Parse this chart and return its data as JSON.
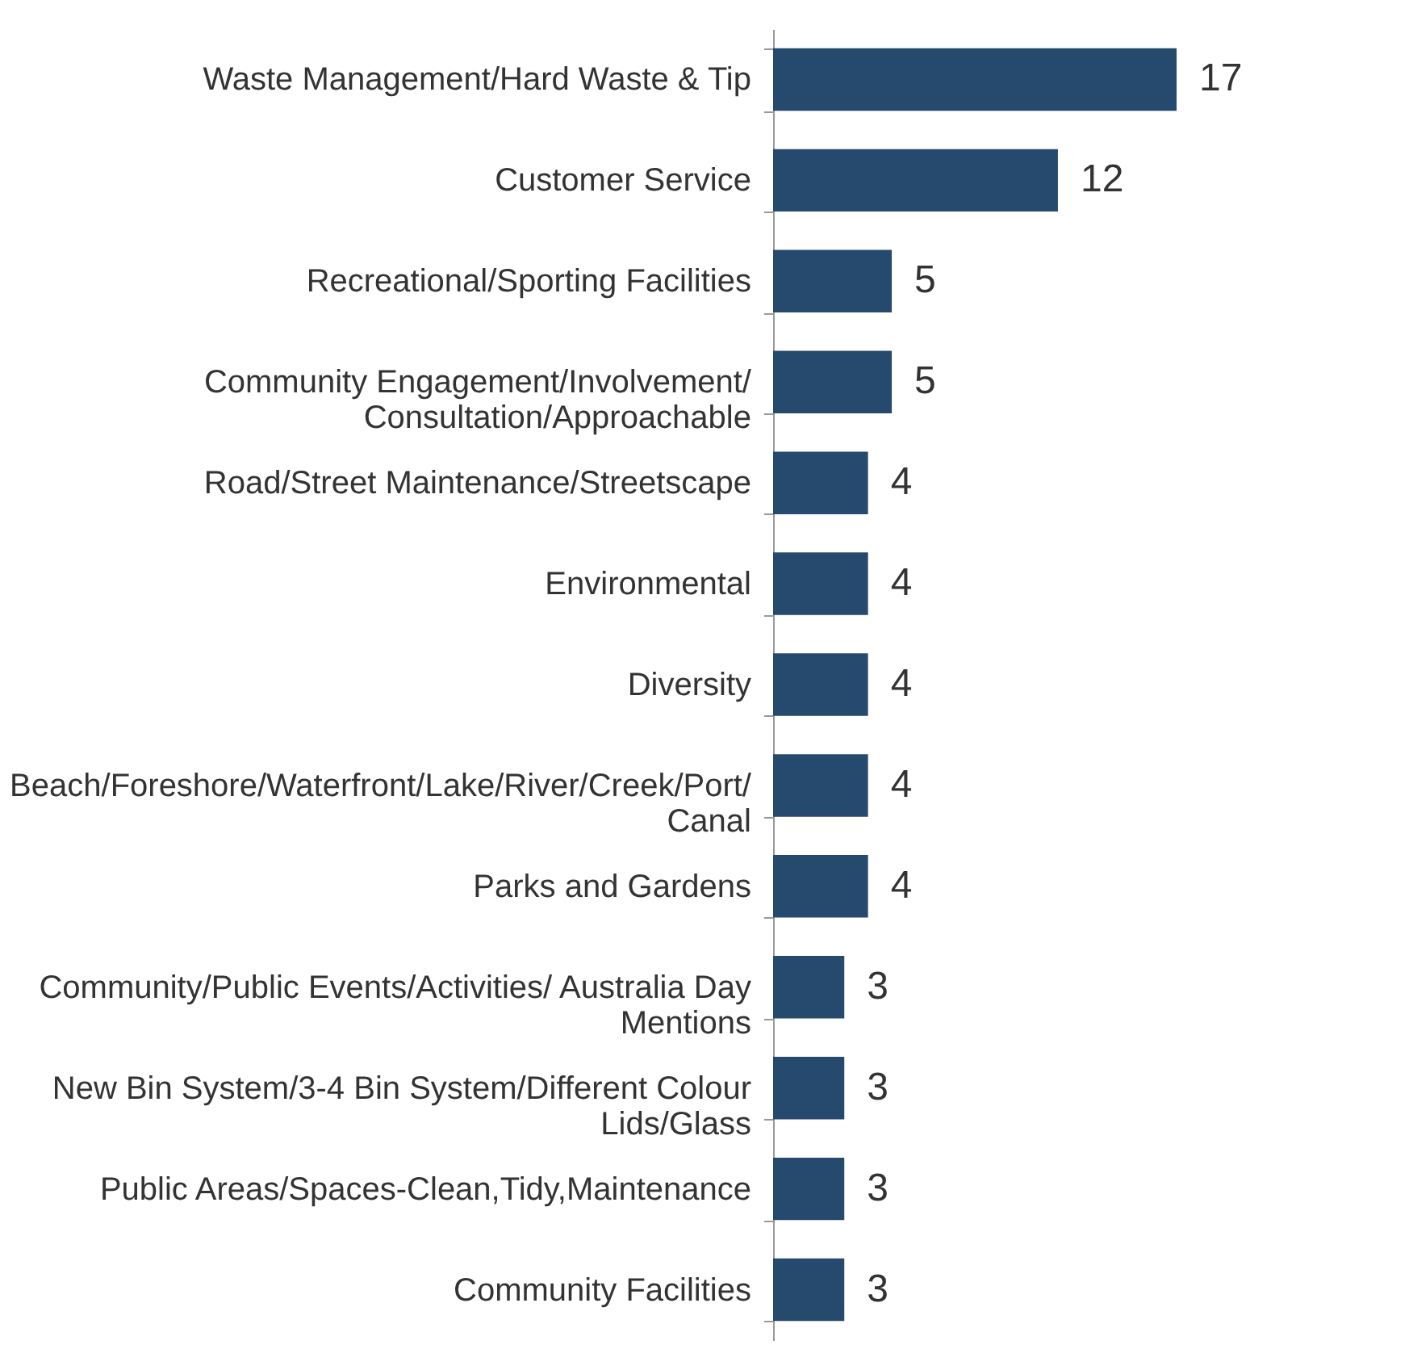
{
  "chart_data": {
    "type": "bar",
    "orientation": "horizontal",
    "data_labels": true,
    "categories": [
      "Waste Management/Hard Waste & Tip",
      "Customer Service",
      "Recreational/Sporting Facilities",
      "Community Engagement/Involvement/\nConsultation/Approachable",
      "Road/Street Maintenance/Streetscape",
      "Environmental",
      "Diversity",
      "Beach/Foreshore/Waterfront/Lake/River/Creek/Port/\nCanal",
      "Parks and Gardens",
      "Community/Public Events/Activities/ Australia Day\nMentions",
      "New Bin System/3-4 Bin System/Different Colour\nLids/Glass",
      "Public Areas/Spaces-Clean,Tidy,Maintenance",
      "Community Facilities"
    ],
    "values": [
      17,
      12,
      5,
      5,
      4,
      4,
      4,
      4,
      4,
      3,
      3,
      3,
      3
    ],
    "color": "#264a6e"
  }
}
